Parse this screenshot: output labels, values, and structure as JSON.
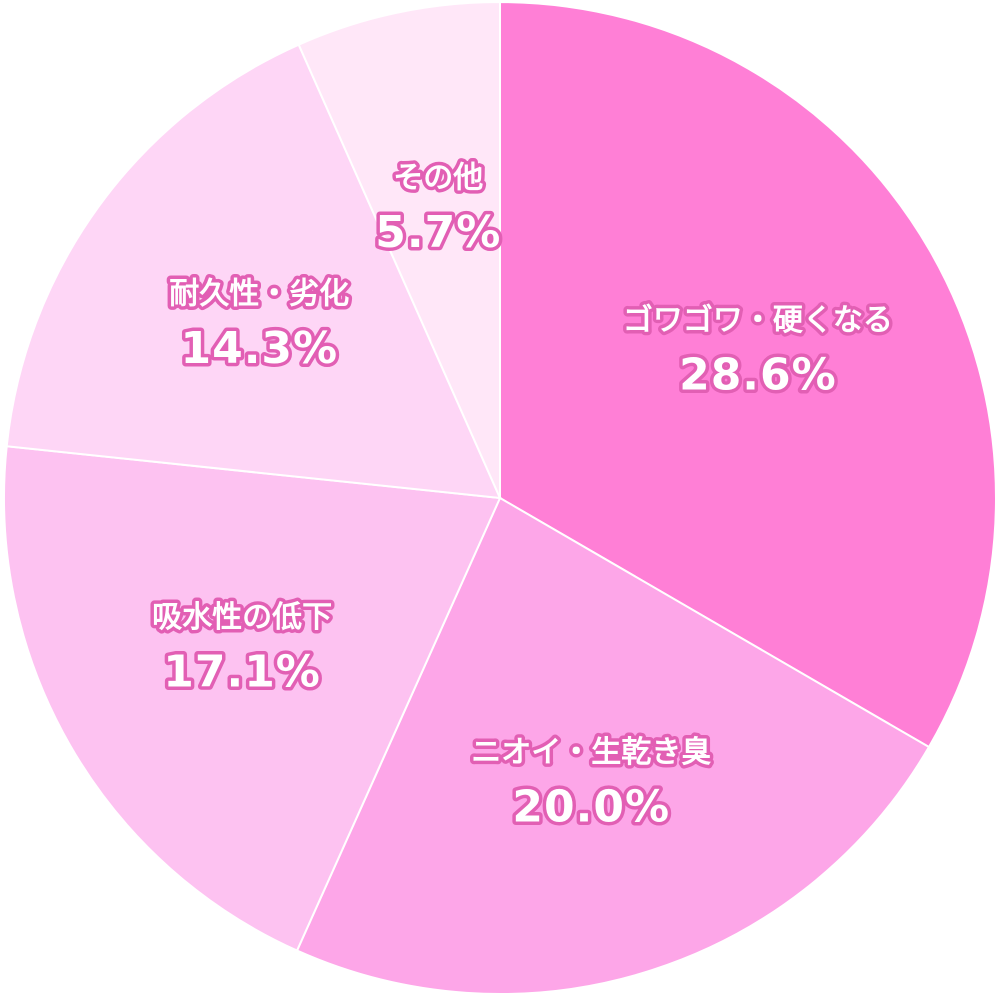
{
  "chart_data": {
    "type": "pie",
    "categories": [
      "ゴワゴワ・硬くなる",
      "ニオイ・生乾き臭",
      "吸水性の低下",
      "耐久性・劣化",
      "その他"
    ],
    "values": [
      28.6,
      20.0,
      17.1,
      14.3,
      5.7
    ],
    "value_labels": [
      "28.6%",
      "20.0%",
      "17.1%",
      "14.3%",
      "5.7%"
    ],
    "colors": [
      "#ff7fd6",
      "#fda6e8",
      "#fdc2f1",
      "#fed6f6",
      "#ffe7f8"
    ]
  }
}
